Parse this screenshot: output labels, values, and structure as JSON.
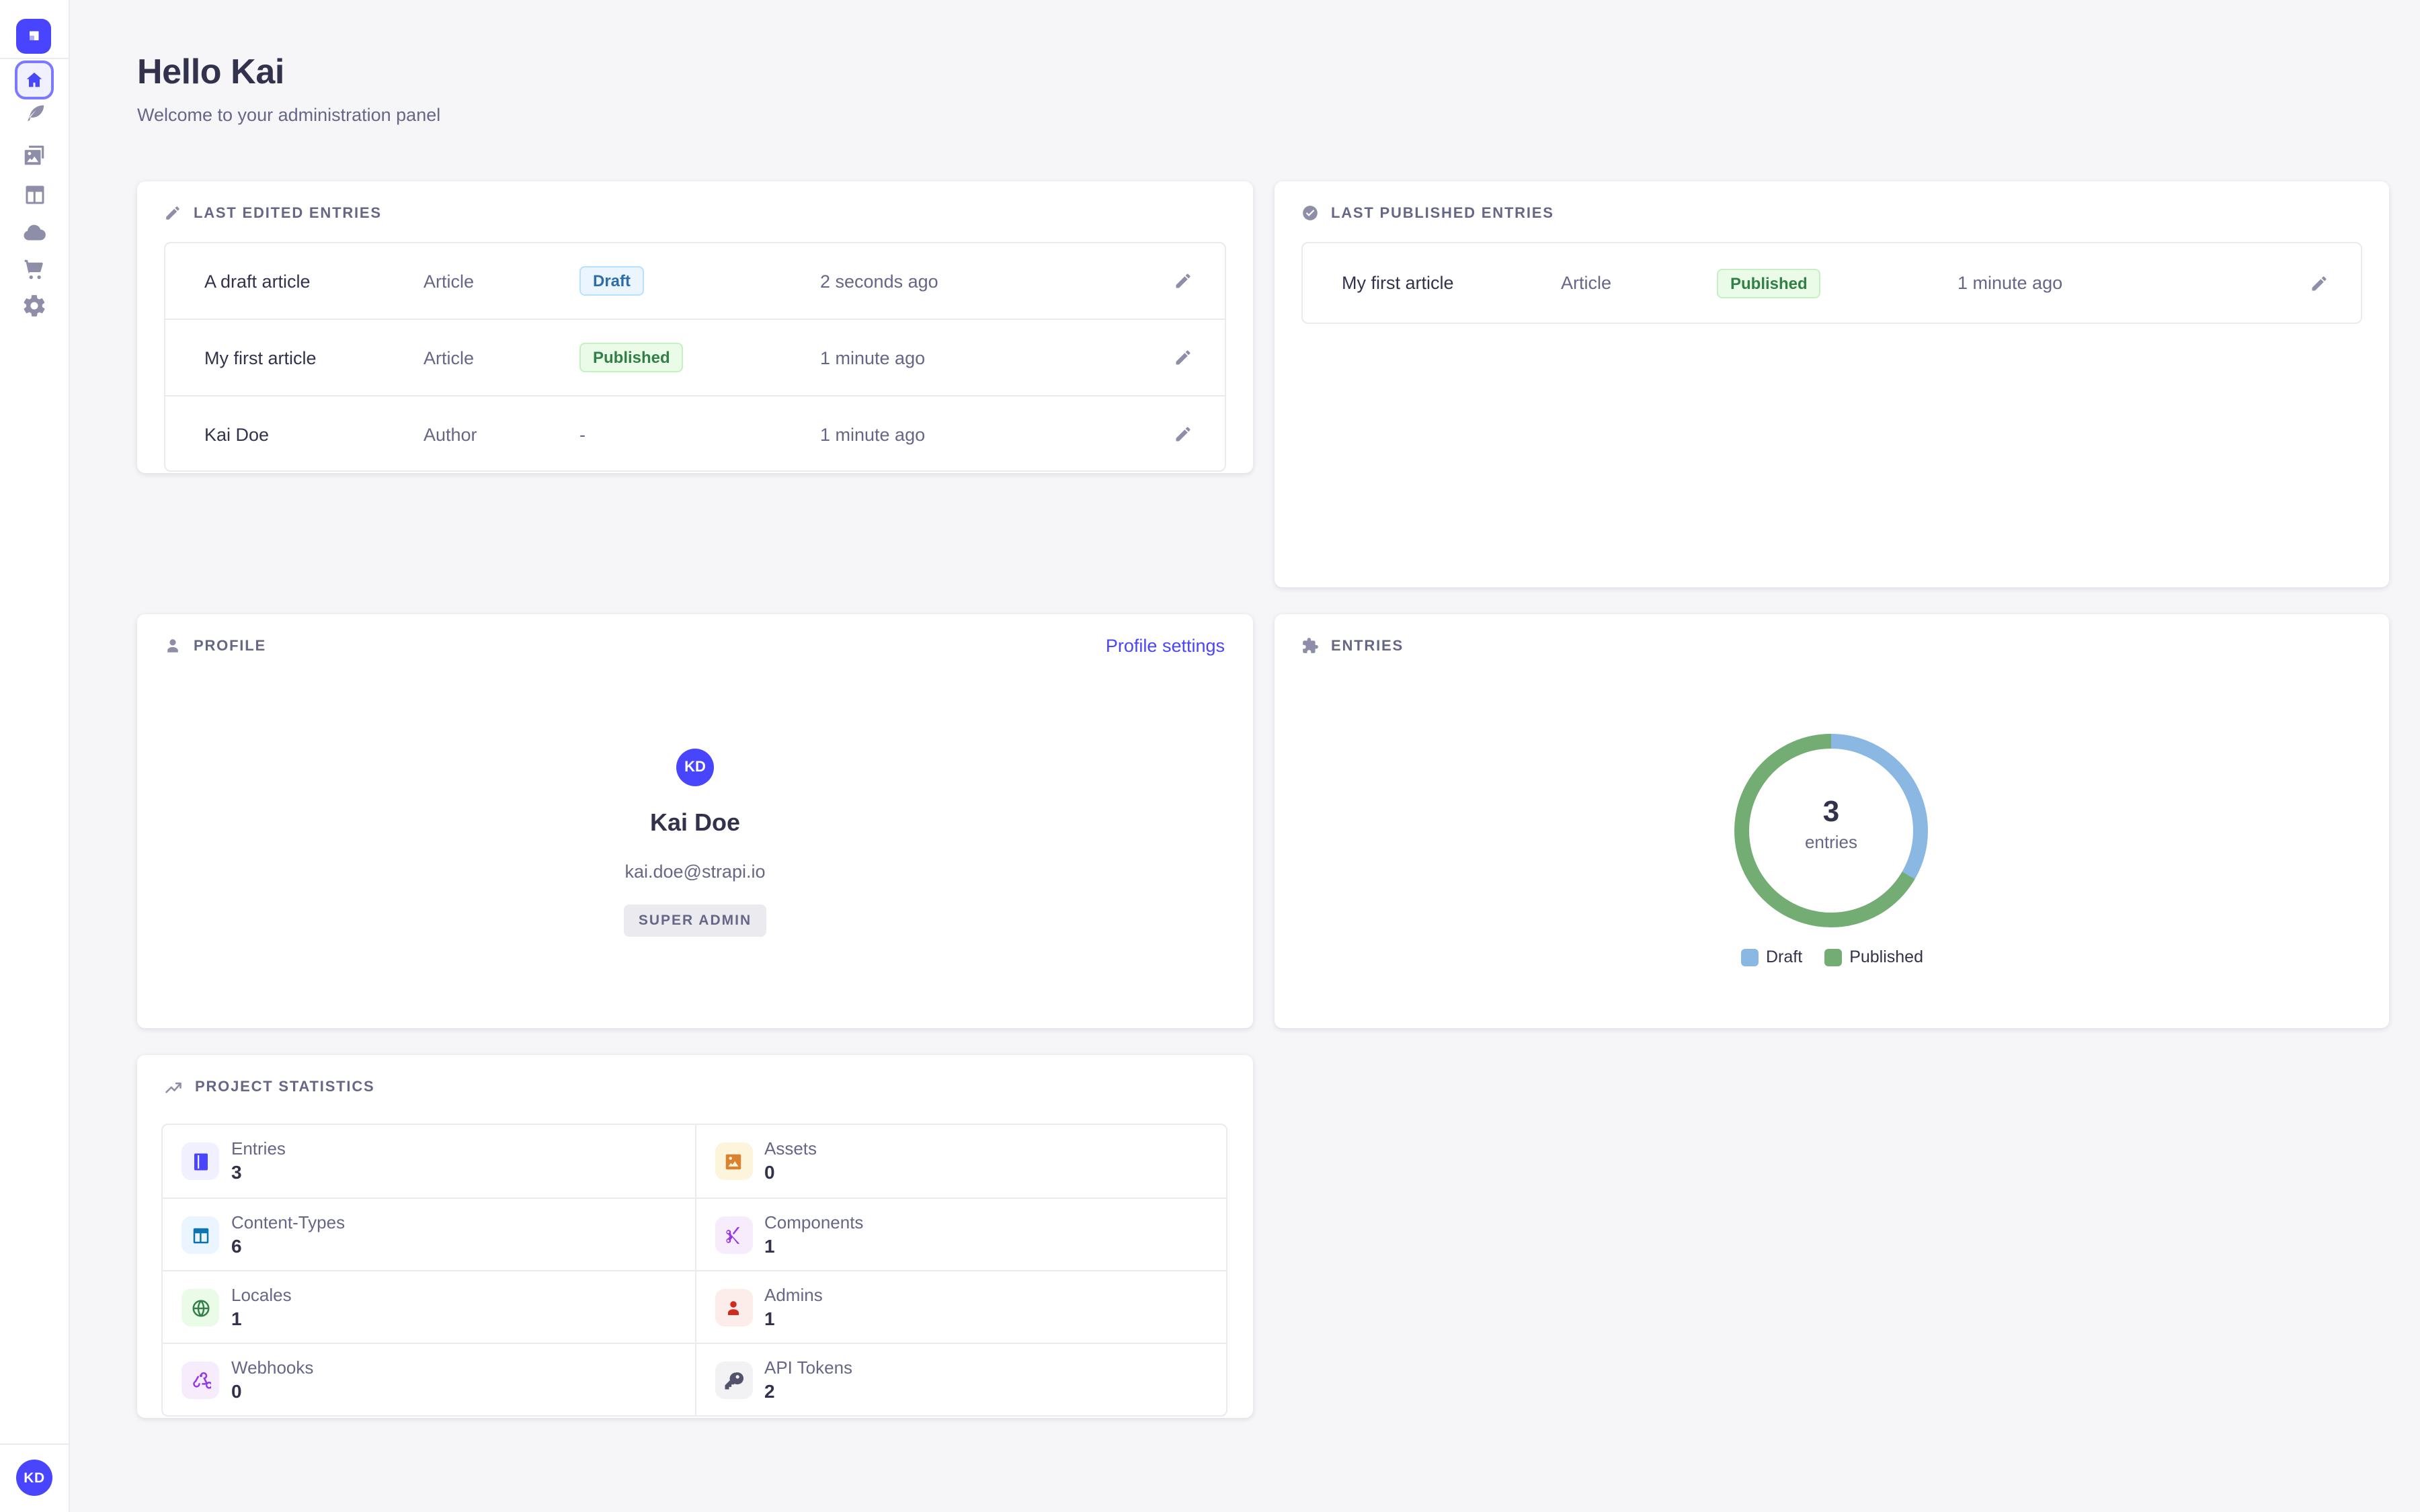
{
  "app": {
    "background": "#f6f6f9",
    "accent": "#4945ff"
  },
  "sidebar": {
    "items": [
      "home",
      "content-manager",
      "media-library",
      "content-type-builder",
      "cloud",
      "marketplace",
      "settings"
    ],
    "active_item": "home",
    "user_initials": "KD"
  },
  "header": {
    "title": "Hello Kai",
    "subtitle": "Welcome to your administration panel"
  },
  "last_edited": {
    "title": "LAST EDITED ENTRIES",
    "rows": [
      {
        "name": "A draft article",
        "type": "Article",
        "status": "Draft",
        "time": "2 seconds ago"
      },
      {
        "name": "My first article",
        "type": "Article",
        "status": "Published",
        "time": "1 minute ago"
      },
      {
        "name": "Kai Doe",
        "type": "Author",
        "status": "-",
        "time": "1 minute ago"
      }
    ]
  },
  "last_published": {
    "title": "LAST PUBLISHED ENTRIES",
    "rows": [
      {
        "name": "My first article",
        "type": "Article",
        "status": "Published",
        "time": "1 minute ago"
      }
    ]
  },
  "profile": {
    "title": "PROFILE",
    "link": "Profile settings",
    "initials": "KD",
    "name": "Kai Doe",
    "email": "kai.doe@strapi.io",
    "role": "SUPER ADMIN"
  },
  "entries": {
    "title": "ENTRIES",
    "center_value": "3",
    "center_label": "entries"
  },
  "chart_data": {
    "type": "pie",
    "variant": "donut",
    "title": "Entries",
    "series": [
      {
        "name": "Draft",
        "value": 1
      },
      {
        "name": "Published",
        "value": 2
      }
    ],
    "colors": [
      "#8ab8e3",
      "#74ad74"
    ],
    "total": 3,
    "center_text": "3 entries",
    "legend_position": "bottom"
  },
  "stats": {
    "title": "PROJECT STATISTICS",
    "items": [
      {
        "label": "Entries",
        "value": "3",
        "icon": "book-icon",
        "tile": "#f0f0ff",
        "color": "#4945ff"
      },
      {
        "label": "Assets",
        "value": "0",
        "icon": "picture-icon",
        "tile": "#fdf4dc",
        "color": "#d9822f"
      },
      {
        "label": "Content-Types",
        "value": "6",
        "icon": "layout-icon",
        "tile": "#eaf5ff",
        "color": "#0c75af"
      },
      {
        "label": "Components",
        "value": "1",
        "icon": "scissors-icon",
        "tile": "#f6ecfc",
        "color": "#9736e8"
      },
      {
        "label": "Locales",
        "value": "1",
        "icon": "globe-icon",
        "tile": "#eafbe7",
        "color": "#328048"
      },
      {
        "label": "Admins",
        "value": "1",
        "icon": "person-icon",
        "tile": "#fcecea",
        "color": "#d02b20"
      },
      {
        "label": "Webhooks",
        "value": "0",
        "icon": "webhook-icon",
        "tile": "#f6ecfc",
        "color": "#9736e8"
      },
      {
        "label": "API Tokens",
        "value": "2",
        "icon": "key-icon",
        "tile": "#f2f2f4",
        "color": "#52526d"
      }
    ]
  }
}
